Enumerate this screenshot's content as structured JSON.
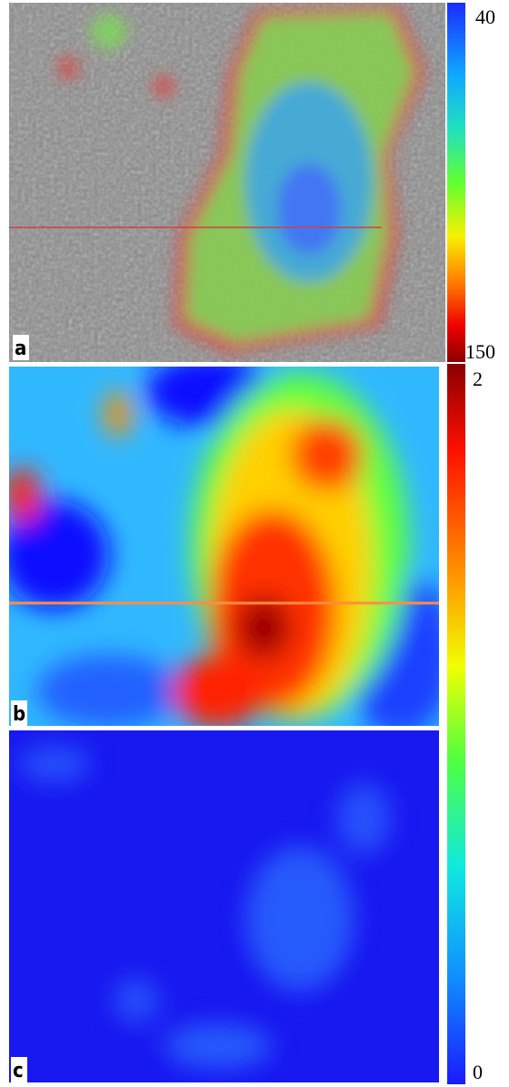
{
  "panels": [
    {
      "label": "a"
    },
    {
      "label": "b"
    },
    {
      "label": "c"
    }
  ],
  "colorbars": [
    {
      "top": 40,
      "bottom": 150
    },
    {
      "top": 2,
      "bottom": 0
    }
  ]
}
